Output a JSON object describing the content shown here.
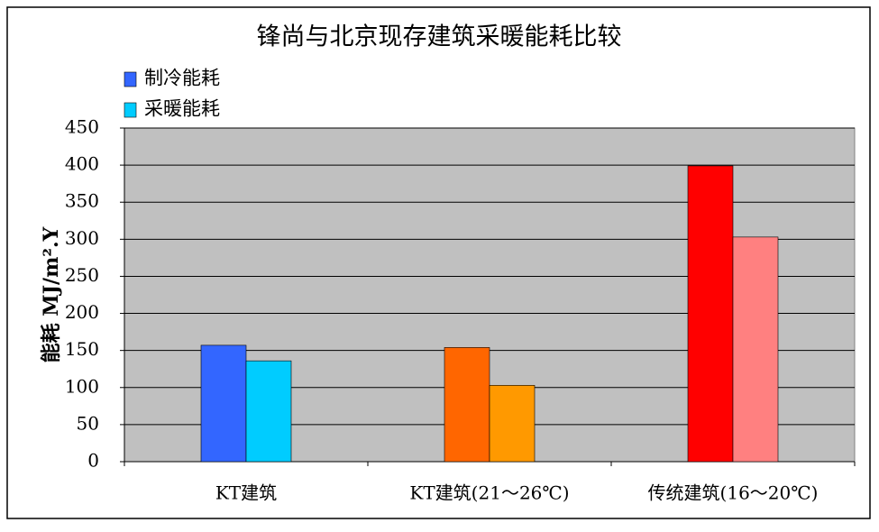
{
  "chart_data": {
    "type": "bar",
    "title": "锋尚与北京现存建筑采暖能耗比较",
    "y_label": "能耗 MJ/m².Y",
    "categories": [
      "KT建筑",
      "KT建筑(21～26℃)",
      "传统建筑(16～20℃)"
    ],
    "series": [
      {
        "name": "制冷能耗",
        "colors": [
          "#3366ff",
          "#ff6600",
          "#ff0000"
        ],
        "values": [
          157,
          154,
          399
        ]
      },
      {
        "name": "采暖能耗",
        "colors": [
          "#00ccff",
          "#ff9900",
          "#ff8080"
        ],
        "values": [
          136,
          103,
          303
        ]
      }
    ],
    "ylim": [
      0,
      450
    ],
    "yticks": [
      0,
      50,
      100,
      150,
      200,
      250,
      300,
      350,
      400,
      450
    ],
    "grid": true,
    "plot_background": "#c0c0c0",
    "legend": "top-left"
  }
}
